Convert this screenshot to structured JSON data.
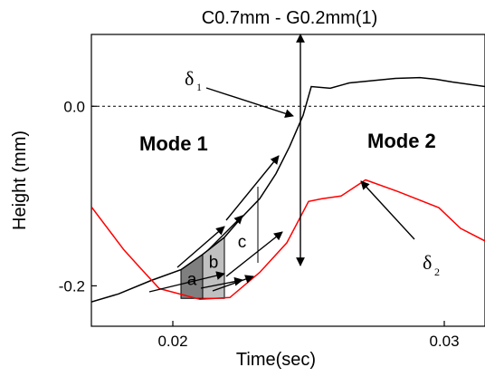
{
  "chart_data": {
    "type": "line",
    "title": "C0.7mm - G0.2mm(1)",
    "xlabel": "Time(sec)",
    "ylabel": "Height (mm)",
    "xlim": [
      0.017,
      0.0315
    ],
    "ylim": [
      -0.245,
      0.08
    ],
    "x_ticks": [
      0.02,
      0.03
    ],
    "x_tick_labels": [
      "0.02",
      "0.03"
    ],
    "y_ticks": [
      -0.2,
      0.0
    ],
    "y_tick_labels": [
      "-0.2",
      "0.0"
    ],
    "reference_line": {
      "y": 0.0,
      "style": "dashed",
      "color": "#000000"
    },
    "series": [
      {
        "color": "#000000",
        "x": [
          0.017,
          0.018,
          0.0192,
          0.0203,
          0.0211,
          0.0219,
          0.0225,
          0.0232,
          0.0238,
          0.0243,
          0.0248,
          0.0251,
          0.0258,
          0.0265,
          0.0282,
          0.0291,
          0.0297,
          0.0303,
          0.0315
        ],
        "y": [
          -0.218,
          -0.209,
          -0.194,
          -0.182,
          -0.165,
          -0.146,
          -0.125,
          -0.103,
          -0.075,
          -0.045,
          -0.01,
          0.022,
          0.02,
          0.026,
          0.031,
          0.032,
          0.03,
          0.027,
          0.022
        ]
      },
      {
        "color": "#ff0000",
        "x": [
          0.017,
          0.0177,
          0.0182,
          0.0188,
          0.0195,
          0.021,
          0.0221,
          0.0232,
          0.0242,
          0.025,
          0.0255,
          0.0262,
          0.0271,
          0.0283,
          0.0298,
          0.0306,
          0.0315
        ],
        "y": [
          -0.112,
          -0.14,
          -0.16,
          -0.18,
          -0.203,
          -0.215,
          -0.213,
          -0.185,
          -0.152,
          -0.106,
          -0.103,
          -0.1,
          -0.082,
          -0.095,
          -0.113,
          -0.136,
          -0.15
        ]
      }
    ],
    "annotations": {
      "mode1": "Mode 1",
      "mode2": "Mode 2",
      "region_a": "a",
      "region_b": "b",
      "region_c": "c",
      "delta1_symbol": "δ",
      "delta1_sub": "1",
      "delta2_symbol": "δ",
      "delta2_sub": "2"
    },
    "regions": [
      {
        "label": "a",
        "color": "#7f7f7f",
        "x": [
          0.0203,
          0.0211
        ]
      },
      {
        "label": "b",
        "color": "#c0c0c0",
        "x": [
          0.0211,
          0.0219
        ]
      }
    ],
    "grid": false,
    "legend": "none"
  }
}
